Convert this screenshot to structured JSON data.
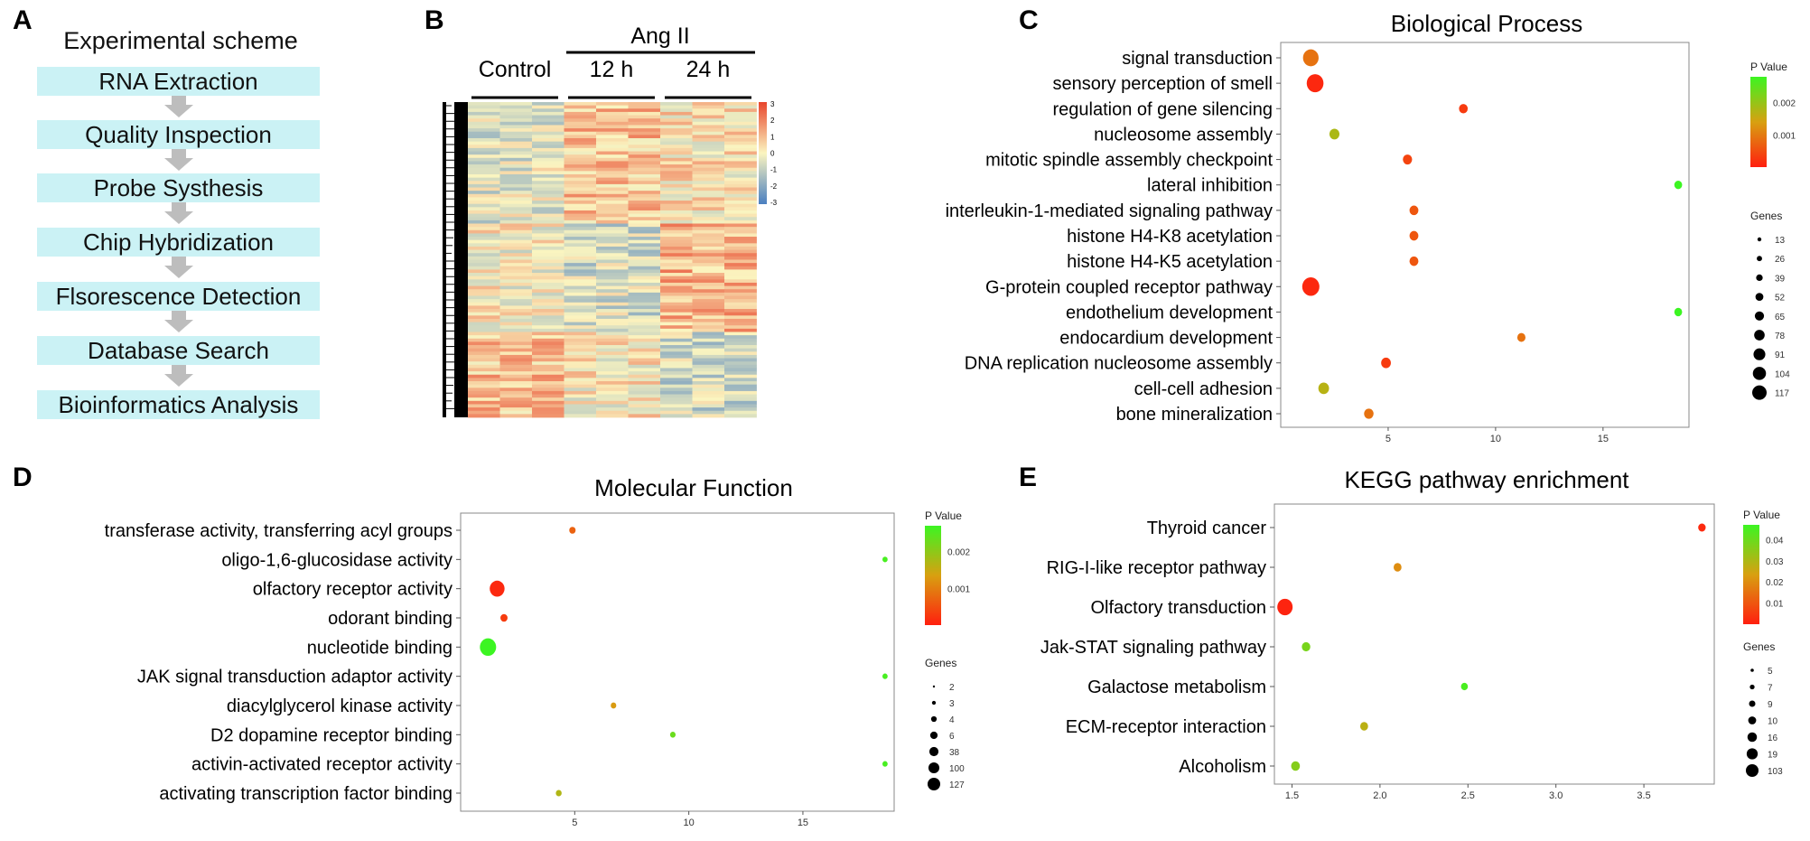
{
  "panel_labels": {
    "a": "A",
    "b": "B",
    "c": "C",
    "d": "D",
    "e": "E"
  },
  "panelA": {
    "title": "Experimental scheme",
    "steps": [
      "RNA Extraction",
      "Quality Inspection",
      "Probe Systhesis",
      "Chip Hybridization",
      "Flsorescence Detection",
      "Database Search",
      "Bioinformatics Analysis"
    ],
    "colors": {
      "box": "#cbf2f5",
      "arrow": "#bdbdbd"
    }
  },
  "chart_data": [
    {
      "id": "heatmap",
      "type": "heatmap",
      "group_label": "Ang II",
      "columns": [
        "Control",
        "12 h",
        "24 h"
      ],
      "color_scale": {
        "min": -3,
        "max": 3,
        "ticks": [
          "3",
          "2",
          "1",
          "0",
          "-1",
          "-2",
          "-3"
        ],
        "low": "#4a7fc0",
        "mid": "#fbf5c0",
        "high": "#e8452c"
      },
      "samples_per_group": 3,
      "rows": 96
    },
    {
      "id": "bp",
      "type": "scatter",
      "title": "Biological Process",
      "xlim": [
        0,
        19
      ],
      "xticks": [
        5,
        10,
        15
      ],
      "categories": [
        "signal transduction",
        "sensory perception of smell",
        "regulation of gene silencing",
        "nucleosome assembly",
        "mitotic spindle assembly checkpoint",
        "lateral inhibition",
        "interleukin-1-mediated signaling pathway",
        "histone H4-K8 acetylation",
        "histone H4-K5 acetylation",
        "G-protein coupled receptor pathway",
        "endothelium development",
        "endocardium development",
        "DNA replication nucleosome assembly",
        "cell-cell adhesion",
        "bone mineralization"
      ],
      "x": [
        1.4,
        1.6,
        8.5,
        2.5,
        5.9,
        18.5,
        6.2,
        6.2,
        6.2,
        1.4,
        18.5,
        11.2,
        4.9,
        2.0,
        4.1
      ],
      "genes": [
        90,
        110,
        13,
        22,
        16,
        8,
        14,
        14,
        14,
        117,
        8,
        10,
        20,
        28,
        18
      ],
      "pvalue": [
        0.0009,
        0.0001,
        0.0003,
        0.0018,
        0.0004,
        0.0028,
        0.0006,
        0.0006,
        0.0006,
        0.0001,
        0.0028,
        0.0009,
        0.0003,
        0.0017,
        0.0009
      ],
      "legend": {
        "pvalue_title": "P Value",
        "pvalue_ticks": [
          "0.002",
          "0.001"
        ],
        "pvalue_tick_values": [
          0.002,
          0.001
        ],
        "pvalue_range": [
          0,
          0.0028
        ],
        "genes_title": "Genes",
        "genes_ticks": [
          "13",
          "26",
          "39",
          "52",
          "65",
          "78",
          "91",
          "104",
          "117"
        ]
      }
    },
    {
      "id": "mf",
      "type": "scatter",
      "title": "Molecular Function",
      "xlim": [
        0,
        19
      ],
      "xticks": [
        5,
        10,
        15
      ],
      "categories": [
        "transferase activity, transferring acyl groups",
        "oligo-1,6-glucosidase activity",
        "olfactory receptor activity",
        "odorant binding",
        "nucleotide binding",
        "JAK signal transduction adaptor activity",
        "diacylglycerol kinase activity",
        "D2 dopamine receptor binding",
        "activin-activated receptor activity",
        "activating transcription factor binding"
      ],
      "x": [
        4.9,
        18.6,
        1.6,
        1.9,
        1.2,
        18.6,
        6.7,
        9.3,
        18.6,
        4.3
      ],
      "genes": [
        6,
        2,
        100,
        10,
        127,
        2,
        3,
        3,
        2,
        4
      ],
      "pvalue": [
        0.0007,
        0.0026,
        0.0001,
        0.0003,
        0.0027,
        0.0026,
        0.0013,
        0.0023,
        0.0026,
        0.0017
      ],
      "legend": {
        "pvalue_title": "P Value",
        "pvalue_ticks": [
          "0.002",
          "0.001"
        ],
        "pvalue_tick_values": [
          0.002,
          0.001
        ],
        "pvalue_range": [
          0,
          0.0027
        ],
        "genes_title": "Genes",
        "genes_ticks": [
          "2",
          "3",
          "4",
          "6",
          "38",
          "100",
          "127"
        ]
      }
    },
    {
      "id": "kegg",
      "type": "scatter",
      "title": "KEGG pathway enrichment",
      "xlim": [
        1.4,
        3.9
      ],
      "xticks": [
        1.5,
        2.0,
        2.5,
        3.0,
        3.5
      ],
      "xtick_labels": [
        "1.5",
        "2.0",
        "2.5",
        "3.0",
        "3.5"
      ],
      "categories": [
        "Thyroid cancer",
        "RIG-I-like receptor pathway",
        "Olfactory transduction",
        "Jak-STAT signaling pathway",
        "Galactose metabolism",
        "ECM-receptor interaction",
        "Alcoholism"
      ],
      "x": [
        3.83,
        2.1,
        1.46,
        1.58,
        2.48,
        1.91,
        1.52
      ],
      "genes": [
        8,
        10,
        103,
        14,
        5,
        10,
        16
      ],
      "pvalue": [
        0.002,
        0.02,
        0.001,
        0.038,
        0.045,
        0.028,
        0.036
      ],
      "legend": {
        "pvalue_title": "P Value",
        "pvalue_ticks": [
          "0.04",
          "0.03",
          "0.02",
          "0.01"
        ],
        "pvalue_tick_values": [
          0.04,
          0.03,
          0.02,
          0.01
        ],
        "pvalue_range": [
          0,
          0.047
        ],
        "genes_title": "Genes",
        "genes_ticks": [
          "5",
          "7",
          "9",
          "10",
          "16",
          "19",
          "103"
        ]
      }
    }
  ]
}
